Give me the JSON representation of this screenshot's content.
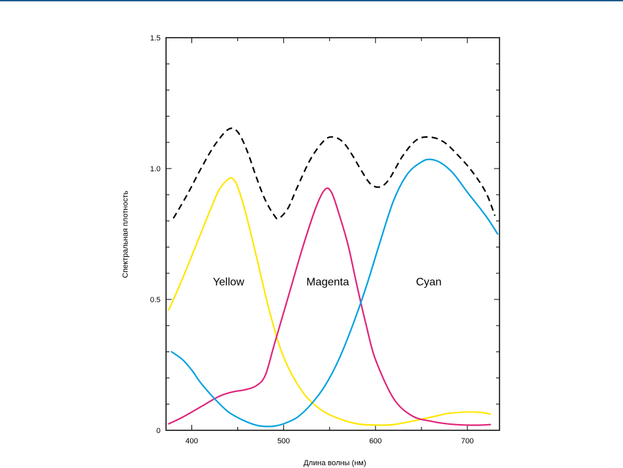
{
  "chart_data": {
    "type": "line",
    "xlabel": "Длина волны (нм)",
    "ylabel": "Спектральная плотность",
    "xlim": [
      372,
      735
    ],
    "ylim": [
      0,
      1.5
    ],
    "xticks": [
      400,
      500,
      600,
      700
    ],
    "xtick_labels": [
      "400",
      "500",
      "600",
      "700"
    ],
    "yticks": [
      0,
      0.5,
      1.0,
      1.5
    ],
    "ytick_labels": [
      "0",
      "0.5",
      "1.0",
      "1.5"
    ],
    "grid": false,
    "series": [
      {
        "name": "Yellow",
        "color": "#ffe600",
        "dash": "solid",
        "x": [
          375,
          390,
          405,
          420,
          430,
          440,
          445,
          450,
          458,
          470,
          485,
          500,
          520,
          540,
          560,
          580,
          600,
          620,
          640,
          660,
          680,
          700,
          715,
          725
        ],
        "y": [
          0.46,
          0.58,
          0.71,
          0.84,
          0.92,
          0.96,
          0.96,
          0.93,
          0.84,
          0.67,
          0.45,
          0.28,
          0.15,
          0.08,
          0.045,
          0.025,
          0.02,
          0.022,
          0.035,
          0.05,
          0.065,
          0.07,
          0.068,
          0.062
        ]
      },
      {
        "name": "Magenta",
        "color": "#e0237a",
        "dash": "solid",
        "x": [
          375,
          390,
          410,
          430,
          445,
          458,
          470,
          480,
          490,
          505,
          520,
          535,
          545,
          552,
          560,
          570,
          580,
          590,
          600,
          620,
          640,
          660,
          680,
          700,
          715,
          725
        ],
        "y": [
          0.025,
          0.05,
          0.09,
          0.13,
          0.147,
          0.155,
          0.17,
          0.21,
          0.33,
          0.51,
          0.69,
          0.85,
          0.92,
          0.91,
          0.83,
          0.71,
          0.55,
          0.4,
          0.27,
          0.12,
          0.055,
          0.035,
          0.024,
          0.02,
          0.02,
          0.022
        ]
      },
      {
        "name": "Cyan",
        "color": "#00a0e0",
        "dash": "solid",
        "x": [
          378,
          390,
          400,
          410,
          425,
          440,
          455,
          470,
          480,
          490,
          500,
          515,
          530,
          545,
          560,
          575,
          590,
          605,
          620,
          635,
          650,
          660,
          672,
          685,
          700,
          720,
          733
        ],
        "y": [
          0.3,
          0.27,
          0.23,
          0.18,
          0.12,
          0.07,
          0.04,
          0.02,
          0.015,
          0.016,
          0.025,
          0.05,
          0.1,
          0.17,
          0.27,
          0.4,
          0.55,
          0.72,
          0.88,
          0.98,
          1.025,
          1.035,
          1.02,
          0.98,
          0.91,
          0.82,
          0.75
        ]
      },
      {
        "name": "",
        "color": "#000000",
        "dash": "dashed",
        "x": [
          380,
          395,
          410,
          425,
          440,
          450,
          460,
          470,
          480,
          490,
          495,
          505,
          515,
          530,
          545,
          555,
          565,
          575,
          585,
          595,
          605,
          615,
          630,
          645,
          660,
          675,
          690,
          705,
          720,
          730
        ],
        "y": [
          0.81,
          0.9,
          1.0,
          1.09,
          1.15,
          1.14,
          1.07,
          0.97,
          0.88,
          0.82,
          0.81,
          0.85,
          0.93,
          1.04,
          1.11,
          1.12,
          1.1,
          1.05,
          0.99,
          0.94,
          0.93,
          0.96,
          1.05,
          1.11,
          1.12,
          1.1,
          1.05,
          0.99,
          0.91,
          0.82
        ]
      }
    ],
    "annotations": [
      {
        "text": "Yellow",
        "x": 440,
        "y": 0.57
      },
      {
        "text": "Magenta",
        "x": 548,
        "y": 0.57
      },
      {
        "text": "Cyan",
        "x": 658,
        "y": 0.57
      }
    ]
  }
}
